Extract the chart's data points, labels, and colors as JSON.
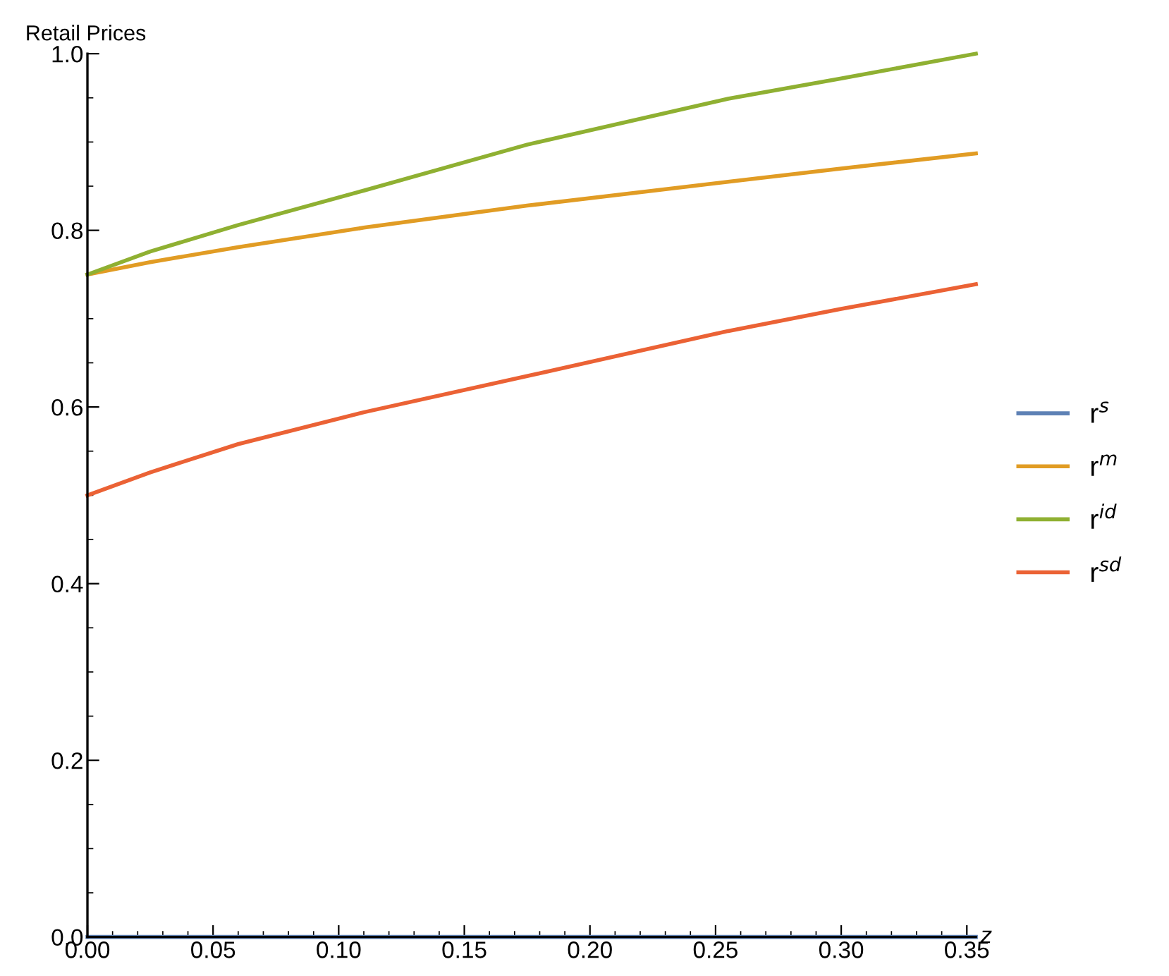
{
  "chart_data": {
    "type": "line",
    "xlabel": "z",
    "ylabel": "Retail Prices",
    "xlim": [
      0,
      0.3536
    ],
    "ylim": [
      0,
      1.0
    ],
    "xticks": [
      {
        "value": 0,
        "label": "0.00"
      },
      {
        "value": 0.01,
        "label": null
      },
      {
        "value": 0.02,
        "label": null
      },
      {
        "value": 0.03,
        "label": null
      },
      {
        "value": 0.04,
        "label": null
      },
      {
        "value": 0.05,
        "label": "0.05"
      },
      {
        "value": 0.06,
        "label": null
      },
      {
        "value": 0.07,
        "label": null
      },
      {
        "value": 0.08,
        "label": null
      },
      {
        "value": 0.09,
        "label": null
      },
      {
        "value": 0.1,
        "label": "0.10"
      },
      {
        "value": 0.11,
        "label": null
      },
      {
        "value": 0.12,
        "label": null
      },
      {
        "value": 0.13,
        "label": null
      },
      {
        "value": 0.14,
        "label": null
      },
      {
        "value": 0.15,
        "label": "0.15"
      },
      {
        "value": 0.16,
        "label": null
      },
      {
        "value": 0.17,
        "label": null
      },
      {
        "value": 0.18,
        "label": null
      },
      {
        "value": 0.19,
        "label": null
      },
      {
        "value": 0.2,
        "label": "0.20"
      },
      {
        "value": 0.21,
        "label": null
      },
      {
        "value": 0.22,
        "label": null
      },
      {
        "value": 0.23,
        "label": null
      },
      {
        "value": 0.24,
        "label": null
      },
      {
        "value": 0.25,
        "label": "0.25"
      },
      {
        "value": 0.26,
        "label": null
      },
      {
        "value": 0.27,
        "label": null
      },
      {
        "value": 0.28,
        "label": null
      },
      {
        "value": 0.29,
        "label": null
      },
      {
        "value": 0.3,
        "label": "0.30"
      },
      {
        "value": 0.31,
        "label": null
      },
      {
        "value": 0.32,
        "label": null
      },
      {
        "value": 0.33,
        "label": null
      },
      {
        "value": 0.34,
        "label": null
      },
      {
        "value": 0.35,
        "label": "0.35"
      }
    ],
    "yticks": [
      {
        "value": 0,
        "label": "0.0"
      },
      {
        "value": 0.05,
        "label": null
      },
      {
        "value": 0.1,
        "label": null
      },
      {
        "value": 0.15,
        "label": null
      },
      {
        "value": 0.2,
        "label": "0.2"
      },
      {
        "value": 0.25,
        "label": null
      },
      {
        "value": 0.3,
        "label": null
      },
      {
        "value": 0.35,
        "label": null
      },
      {
        "value": 0.4,
        "label": "0.4"
      },
      {
        "value": 0.45,
        "label": null
      },
      {
        "value": 0.5,
        "label": null
      },
      {
        "value": 0.55,
        "label": null
      },
      {
        "value": 0.6,
        "label": "0.6"
      },
      {
        "value": 0.65,
        "label": null
      },
      {
        "value": 0.7,
        "label": null
      },
      {
        "value": 0.75,
        "label": null
      },
      {
        "value": 0.8,
        "label": "0.8"
      },
      {
        "value": 0.85,
        "label": null
      },
      {
        "value": 0.9,
        "label": null
      },
      {
        "value": 0.95,
        "label": null
      },
      {
        "value": 1.0,
        "label": "1.0"
      }
    ],
    "x": [
      0,
      0.025,
      0.06,
      0.11,
      0.175,
      0.255,
      0.3,
      0.3536
    ],
    "series": [
      {
        "name": "r$^{s}$",
        "color": "#5e81b5",
        "values": [
          0,
          0,
          0,
          0,
          0,
          0,
          0,
          0
        ]
      },
      {
        "name": "r$^{m}$",
        "color": "#e19c24",
        "values": [
          0.75,
          0.764,
          0.781,
          0.803,
          0.828,
          0.855,
          0.87,
          0.887
        ]
      },
      {
        "name": "r$^{id}$",
        "color": "#8fb032",
        "values": [
          0.75,
          0.776,
          0.806,
          0.845,
          0.897,
          0.949,
          0.972,
          1.0
        ]
      },
      {
        "name": "r$^{sd}$",
        "color": "#eb6235",
        "values": [
          0.5,
          0.526,
          0.558,
          0.594,
          0.635,
          0.686,
          0.711,
          0.739
        ]
      }
    ],
    "legend": "right",
    "grid": false,
    "marker": "none",
    "line_style": "solid"
  }
}
